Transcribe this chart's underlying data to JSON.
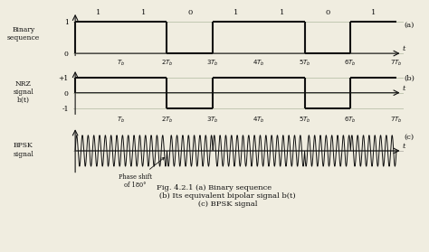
{
  "binary_sequence": [
    1,
    1,
    0,
    1,
    1,
    0,
    1
  ],
  "nrz_values": [
    1,
    1,
    -1,
    1,
    1,
    -1,
    1
  ],
  "Tb": 1.0,
  "carrier_freq": 8,
  "title_line1": "Fig. 4.2.1 (a) Binary sequence",
  "title_line2": "           (b) Its equivalent bipolar signal b(t)",
  "title_line3": "           (c) BPSK signal",
  "label_a": "(a)",
  "label_b": "(b)",
  "label_c": "(c)",
  "ylabel_a": "Binary\nsequence",
  "ylabel_b": "NRZ\nsignal\nb(t)",
  "ylabel_c": "BPSK\nsignal",
  "bg_color": "#f0ede0",
  "grid_color": "#b0b8a0",
  "line_color": "#111111",
  "phase_shift_label": "Phase shift\nof 180°",
  "fig_width": 4.74,
  "fig_height": 2.79,
  "dpi": 100
}
